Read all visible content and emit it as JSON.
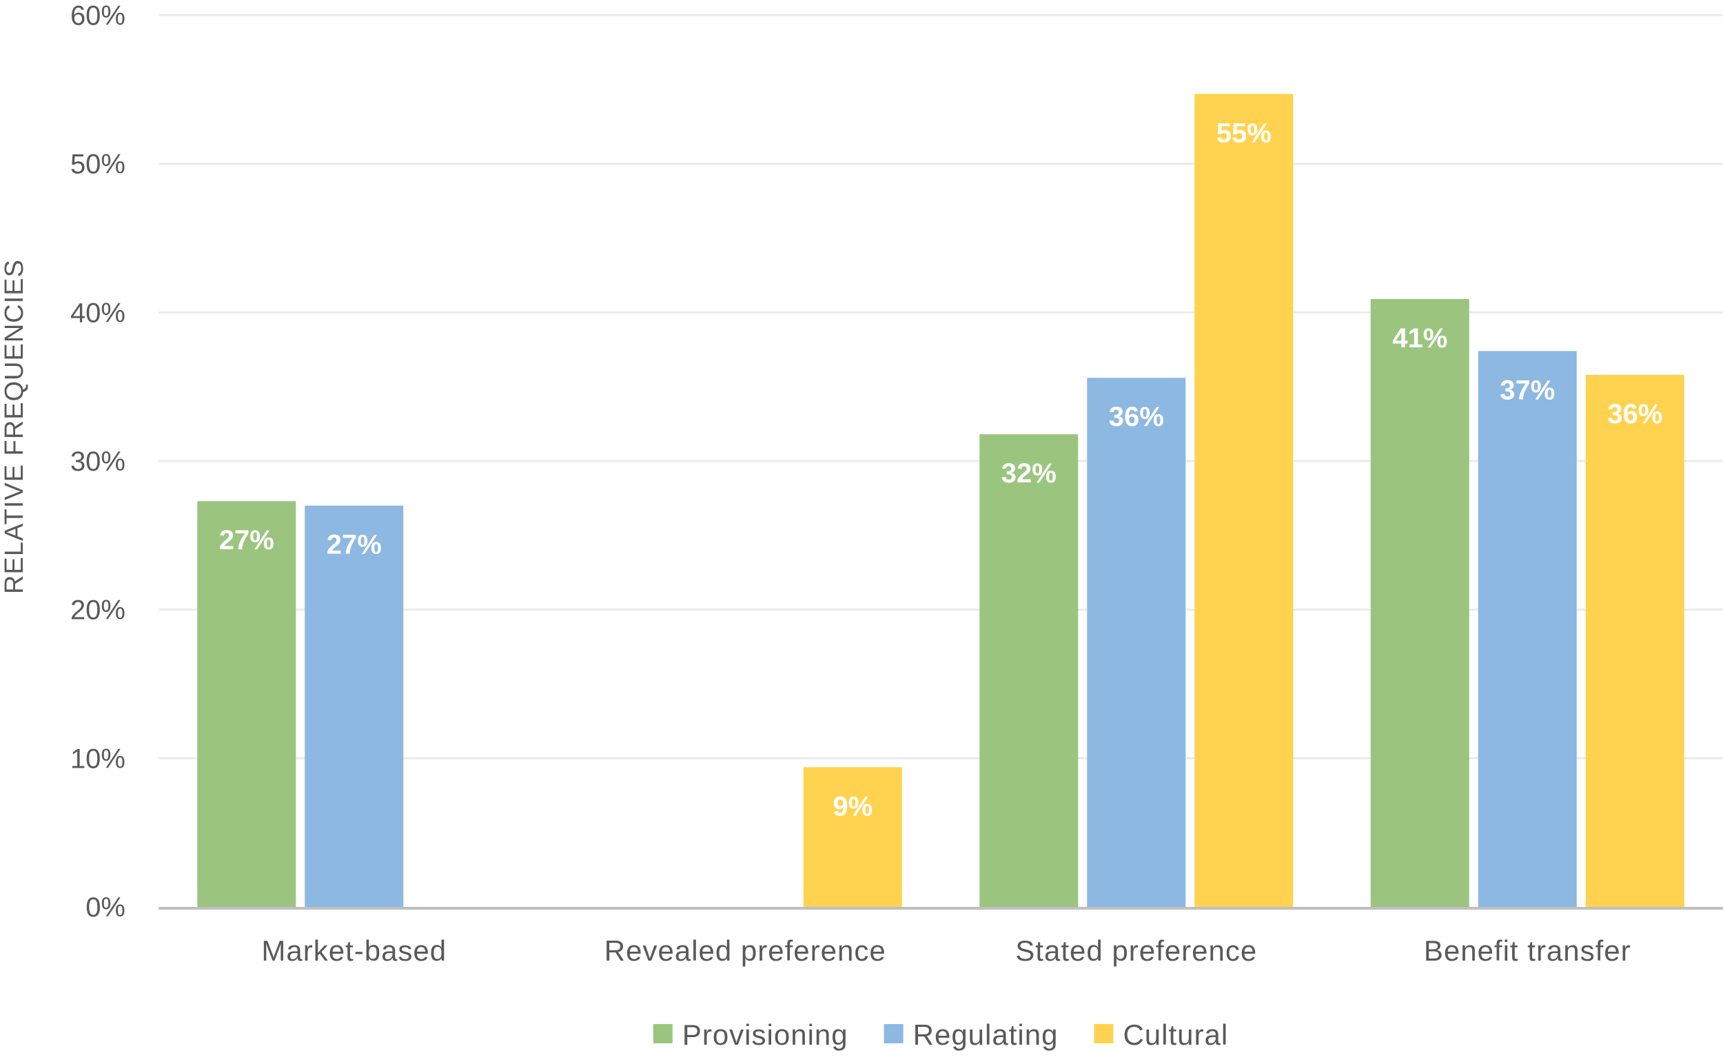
{
  "chart_data": {
    "type": "bar",
    "title": "",
    "xlabel": "",
    "ylabel": "RELATIVE FREQUENCIES",
    "categories": [
      "Market-based",
      "Revealed preference",
      "Stated preference",
      "Benefit transfer"
    ],
    "series": [
      {
        "name": "Provisioning",
        "color": "#9bc57f",
        "values": [
          27.3,
          0,
          31.8,
          40.9
        ],
        "labels": [
          "27%",
          "",
          "32%",
          "41%"
        ]
      },
      {
        "name": "Regulating",
        "color": "#8db8e2",
        "values": [
          27.0,
          0,
          35.6,
          37.4
        ],
        "labels": [
          "27%",
          "",
          "36%",
          "37%"
        ]
      },
      {
        "name": "Cultural",
        "color": "#ffd34f",
        "values": [
          0,
          9.4,
          54.7,
          35.8
        ],
        "labels": [
          "",
          "9%",
          "55%",
          "36%"
        ]
      }
    ],
    "ylim": [
      0,
      60
    ],
    "yticks": [
      "0%",
      "10%",
      "20%",
      "30%",
      "40%",
      "50%",
      "60%"
    ],
    "grid": true,
    "legend_position": "bottom-center"
  }
}
